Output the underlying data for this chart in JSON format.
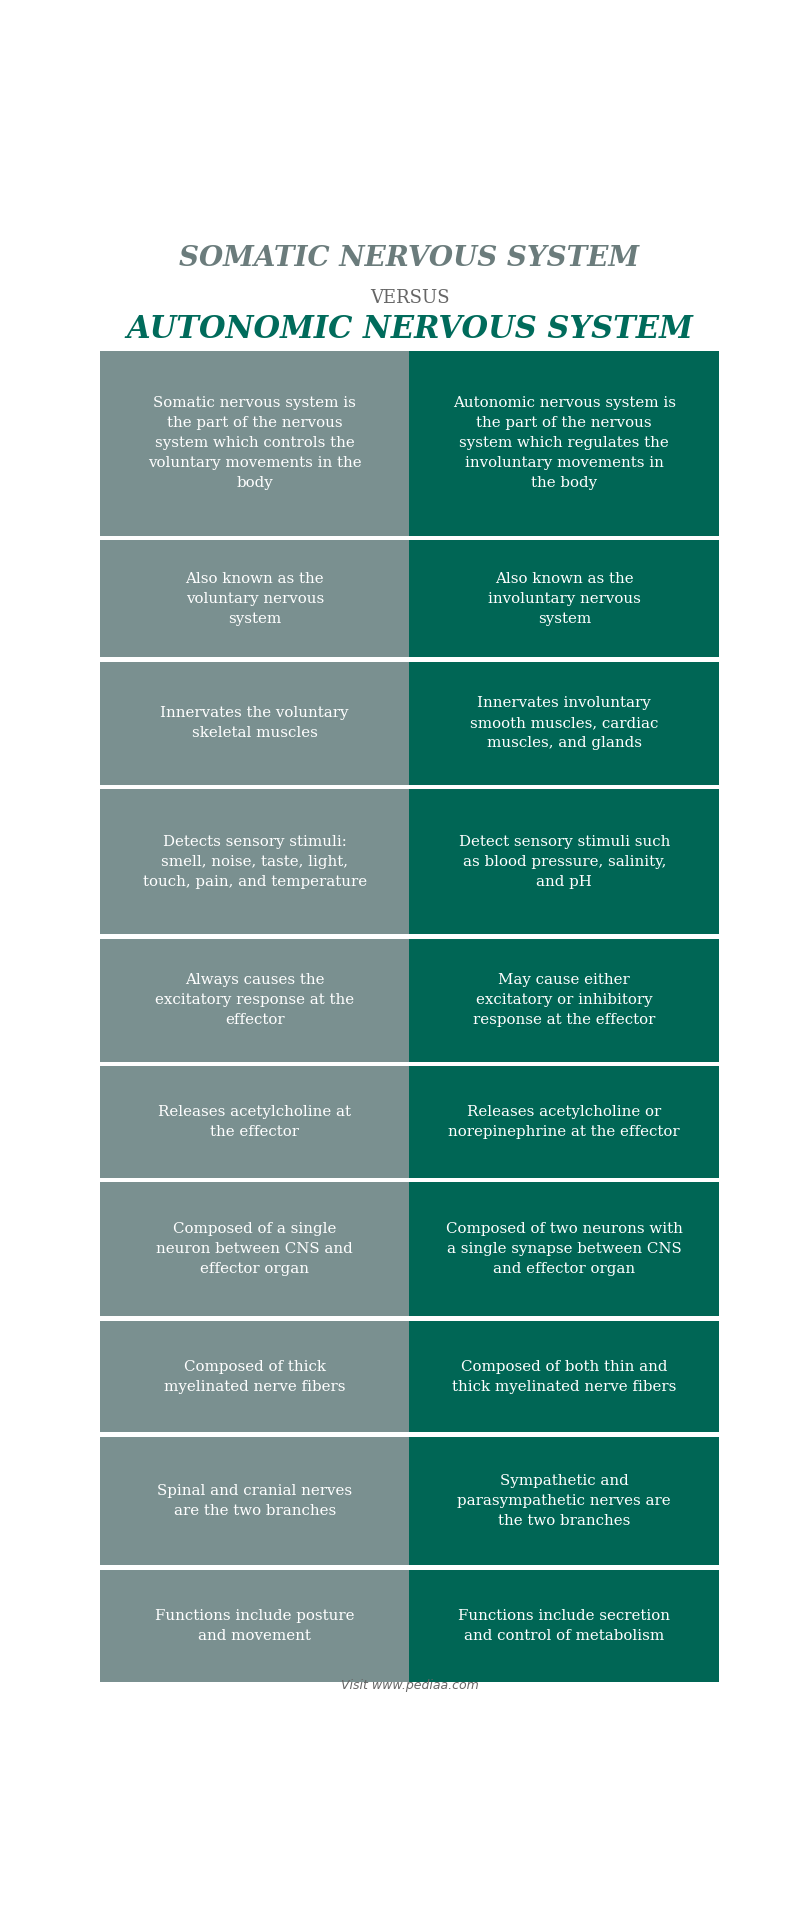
{
  "title1": "SOMATIC NERVOUS SYSTEM",
  "versus": "VERSUS",
  "title2": "AUTONOMIC NERVOUS SYSTEM",
  "title1_color": "#6b7c7c",
  "title2_color": "#006b5b",
  "versus_color": "#666666",
  "left_bg": "#7a9090",
  "right_bg": "#006655",
  "text_color": "#ffffff",
  "footer_text": "Visit www.pediaa.com",
  "footer_color": "#666666",
  "rows": [
    {
      "left": "Somatic nervous system is\nthe part of the nervous\nsystem which controls the\nvoluntary movements in the\nbody",
      "right": "Autonomic nervous system is\nthe part of the nervous\nsystem which regulates the\ninvoluntary movements in\nthe body"
    },
    {
      "left": "Also known as the\nvoluntary nervous\nsystem",
      "right": "Also known as the\ninvoluntary nervous\nsystem"
    },
    {
      "left": "Innervates the voluntary\nskeletal muscles",
      "right": "Innervates involuntary\nsmooth muscles, cardiac\nmuscles, and glands"
    },
    {
      "left": "Detects sensory stimuli:\nsmell, noise, taste, light,\ntouch, pain, and temperature",
      "right": "Detect sensory stimuli such\nas blood pressure, salinity,\nand pH"
    },
    {
      "left": "Always causes the\nexcitatory response at the\neffector",
      "right": "May cause either\nexcitatory or inhibitory\nresponse at the effector"
    },
    {
      "left": "Releases acetylcholine at\nthe effector",
      "right": "Releases acetylcholine or\nnorepinephrine at the effector"
    },
    {
      "left": "Composed of a single\nneuron between CNS and\neffector organ",
      "right": "Composed of two neurons with\na single synapse between CNS\nand effector organ"
    },
    {
      "left": "Composed of thick\nmyelinated nerve fibers",
      "right": "Composed of both thin and\nthick myelinated nerve fibers"
    },
    {
      "left": "Spinal and cranial nerves\nare the two branches",
      "right": "Sympathetic and\nparasympathetic nerves are\nthe two branches"
    },
    {
      "left": "Functions include posture\nand movement",
      "right": "Functions include secretion\nand control of metabolism"
    }
  ],
  "row_heights_rel": [
    1.65,
    1.05,
    1.1,
    1.3,
    1.1,
    1.0,
    1.2,
    1.0,
    1.15,
    1.0
  ]
}
